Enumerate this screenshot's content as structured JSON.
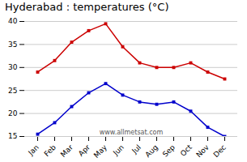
{
  "chart_data": {
    "type": "line",
    "title": "Hyderabad : temperatures (°C)",
    "categories": [
      "Jan",
      "Feb",
      "Mar",
      "Apr",
      "May",
      "Jun",
      "Jul",
      "Aug",
      "Sep",
      "Oct",
      "Nov",
      "Dec"
    ],
    "series": [
      {
        "color": "#cc0000",
        "marker": "square",
        "values": [
          29,
          31.5,
          35.5,
          38,
          39.5,
          34.5,
          31,
          30,
          30,
          31,
          29,
          27.5
        ]
      },
      {
        "color": "#0000cc",
        "marker": "square",
        "values": [
          15.5,
          18,
          21.5,
          24.5,
          26.5,
          24,
          22.5,
          22,
          22.5,
          20.5,
          17,
          15
        ]
      }
    ],
    "ylim": [
      15,
      40
    ],
    "yticks": [
      15,
      20,
      25,
      30,
      35,
      40
    ],
    "grid": "y",
    "annotation": "www.allmetsat.com"
  }
}
